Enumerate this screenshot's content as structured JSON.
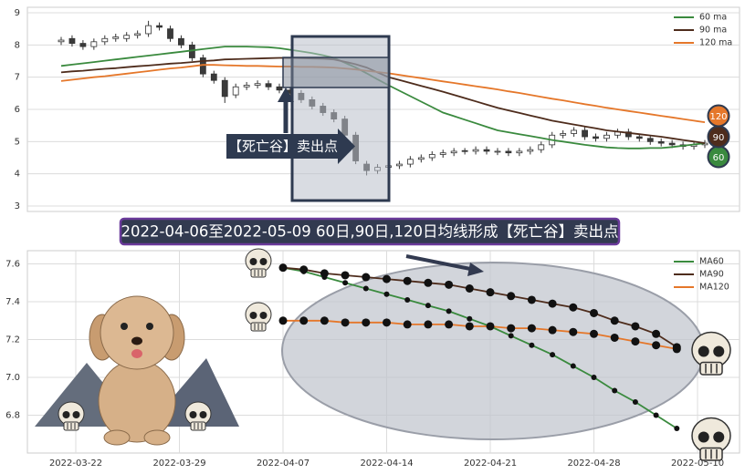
{
  "chart_data": [
    {
      "type": "candlestick",
      "annotation": "【死亡谷】卖出点",
      "open": [
        8.1,
        8.2,
        8.05,
        7.95,
        8.1,
        8.2,
        8.2,
        8.3,
        8.35,
        8.6,
        8.5,
        8.2,
        8.0,
        7.6,
        7.1,
        6.9,
        6.45,
        6.7,
        6.75,
        6.8,
        6.7,
        6.6,
        6.5,
        6.3,
        6.1,
        5.9,
        5.7,
        5.2,
        4.3,
        4.1,
        4.2,
        4.25,
        4.3,
        4.45,
        4.5,
        4.6,
        4.65,
        4.72,
        4.7,
        4.75,
        4.68,
        4.7,
        4.65,
        4.7,
        4.75,
        4.9,
        5.2,
        5.25,
        5.35,
        5.15,
        5.1,
        5.2,
        5.3,
        5.15,
        5.1,
        5.0,
        4.95,
        4.9,
        4.85,
        4.9
      ],
      "high": [
        8.25,
        8.3,
        8.15,
        8.2,
        8.3,
        8.35,
        8.4,
        8.45,
        8.75,
        8.7,
        8.6,
        8.3,
        8.1,
        7.7,
        7.2,
        7.0,
        6.8,
        6.85,
        6.9,
        6.9,
        6.8,
        6.7,
        6.6,
        6.4,
        6.2,
        6.0,
        5.8,
        5.3,
        4.4,
        4.3,
        4.35,
        4.4,
        4.55,
        4.6,
        4.7,
        4.75,
        4.8,
        4.8,
        4.85,
        4.85,
        4.8,
        4.8,
        4.8,
        4.85,
        5.0,
        5.3,
        5.35,
        5.45,
        5.45,
        5.25,
        5.3,
        5.4,
        5.4,
        5.25,
        5.2,
        5.1,
        5.05,
        5.0,
        5.0,
        5.05
      ],
      "low": [
        8.0,
        7.95,
        7.85,
        7.85,
        8.0,
        8.1,
        8.1,
        8.2,
        8.25,
        8.45,
        8.1,
        7.9,
        7.5,
        7.0,
        6.8,
        6.2,
        6.35,
        6.6,
        6.65,
        6.6,
        6.5,
        6.4,
        6.2,
        6.0,
        5.8,
        5.6,
        5.1,
        4.3,
        3.95,
        4.0,
        4.1,
        4.15,
        4.2,
        4.35,
        4.4,
        4.5,
        4.55,
        4.6,
        4.6,
        4.6,
        4.58,
        4.55,
        4.55,
        4.6,
        4.65,
        4.8,
        5.1,
        5.15,
        5.05,
        5.0,
        5.0,
        5.1,
        5.05,
        5.0,
        4.9,
        4.85,
        4.8,
        4.75,
        4.75,
        4.8
      ],
      "close": [
        8.15,
        8.05,
        7.95,
        8.1,
        8.2,
        8.25,
        8.3,
        8.35,
        8.6,
        8.55,
        8.2,
        8.0,
        7.6,
        7.1,
        6.9,
        6.4,
        6.7,
        6.75,
        6.8,
        6.7,
        6.6,
        6.5,
        6.3,
        6.1,
        5.9,
        5.7,
        5.2,
        4.4,
        4.1,
        4.2,
        4.25,
        4.3,
        4.45,
        4.5,
        4.6,
        4.65,
        4.7,
        4.7,
        4.75,
        4.7,
        4.7,
        4.65,
        4.7,
        4.75,
        4.9,
        5.2,
        5.25,
        5.35,
        5.15,
        5.1,
        5.2,
        5.3,
        5.15,
        5.1,
        5.0,
        4.95,
        4.9,
        4.85,
        4.9,
        4.95
      ],
      "up_color": "#ffffff",
      "down_color": "#3a3a3a",
      "series": [
        {
          "name": "60 ma",
          "color": "#3a8a3e",
          "badge": 60,
          "values": [
            7.35,
            7.39,
            7.43,
            7.47,
            7.51,
            7.55,
            7.59,
            7.63,
            7.67,
            7.71,
            7.75,
            7.79,
            7.83,
            7.87,
            7.91,
            7.95,
            7.95,
            7.95,
            7.94,
            7.93,
            7.9,
            7.85,
            7.8,
            7.75,
            7.68,
            7.6,
            7.45,
            7.3,
            7.12,
            6.93,
            6.75,
            6.58,
            6.41,
            6.24,
            6.07,
            5.9,
            5.79,
            5.68,
            5.57,
            5.46,
            5.35,
            5.29,
            5.23,
            5.17,
            5.11,
            5.05,
            5.0,
            4.95,
            4.9,
            4.86,
            4.82,
            4.8,
            4.79,
            4.79,
            4.8,
            4.8,
            4.83,
            4.87,
            4.91,
            4.95
          ]
        },
        {
          "name": "90 ma",
          "color": "#4e2c1c",
          "badge": 90,
          "values": [
            7.15,
            7.18,
            7.2,
            7.23,
            7.26,
            7.28,
            7.31,
            7.34,
            7.36,
            7.39,
            7.42,
            7.44,
            7.47,
            7.5,
            7.52,
            7.55,
            7.56,
            7.57,
            7.58,
            7.59,
            7.6,
            7.6,
            7.59,
            7.58,
            7.57,
            7.55,
            7.48,
            7.4,
            7.3,
            7.15,
            7.0,
            6.91,
            6.82,
            6.73,
            6.64,
            6.55,
            6.45,
            6.35,
            6.25,
            6.15,
            6.05,
            5.97,
            5.89,
            5.81,
            5.73,
            5.65,
            5.59,
            5.53,
            5.47,
            5.41,
            5.35,
            5.31,
            5.27,
            5.23,
            5.19,
            5.15,
            5.1,
            5.05,
            5.0,
            4.95
          ]
        },
        {
          "name": "120 ma",
          "color": "#e5772a",
          "badge": 120,
          "values": [
            6.88,
            6.92,
            6.96,
            7.0,
            7.03,
            7.07,
            7.11,
            7.15,
            7.19,
            7.23,
            7.27,
            7.3,
            7.34,
            7.38,
            7.38,
            7.37,
            7.36,
            7.35,
            7.35,
            7.34,
            7.33,
            7.33,
            7.32,
            7.32,
            7.31,
            7.3,
            7.27,
            7.24,
            7.2,
            7.16,
            7.12,
            7.07,
            7.02,
            6.97,
            6.92,
            6.87,
            6.82,
            6.77,
            6.72,
            6.67,
            6.62,
            6.56,
            6.51,
            6.45,
            6.39,
            6.33,
            6.28,
            6.22,
            6.16,
            6.11,
            6.05,
            6.0,
            5.95,
            5.9,
            5.85,
            5.8,
            5.75,
            5.7,
            5.65,
            5.6
          ]
        }
      ],
      "ylim": [
        2.83,
        9.17
      ],
      "yticks": [
        3,
        4,
        5,
        6,
        7,
        8,
        9
      ],
      "grid": true,
      "legend": "upper right"
    },
    {
      "type": "line",
      "title": "2022-04-06至2022-05-09 60日,90日,120日均线形成【死亡谷】卖出点",
      "categories": [
        null,
        null,
        "2022-03-22",
        null,
        null,
        null,
        null,
        "2022-03-29",
        null,
        null,
        null,
        null,
        "2022-04-07",
        null,
        null,
        null,
        null,
        "2022-04-14",
        null,
        null,
        null,
        null,
        "2022-04-21",
        null,
        null,
        null,
        null,
        "2022-04-28",
        null,
        null,
        null,
        null,
        "2022-05-10",
        null
      ],
      "series": [
        {
          "name": "MA60",
          "color": "#3a8a3e",
          "values": [
            null,
            null,
            null,
            null,
            null,
            null,
            null,
            null,
            null,
            null,
            null,
            null,
            7.58,
            7.56,
            7.53,
            7.5,
            7.47,
            7.44,
            7.41,
            7.38,
            7.35,
            7.31,
            7.27,
            7.22,
            7.17,
            7.12,
            7.06,
            7.0,
            6.93,
            6.87,
            6.8,
            6.73,
            null,
            null
          ]
        },
        {
          "name": "MA90",
          "color": "#4e2c1c",
          "values": [
            null,
            null,
            null,
            null,
            null,
            null,
            null,
            null,
            null,
            null,
            null,
            null,
            7.58,
            7.57,
            7.55,
            7.54,
            7.53,
            7.52,
            7.51,
            7.5,
            7.49,
            7.47,
            7.45,
            7.43,
            7.41,
            7.39,
            7.37,
            7.34,
            7.3,
            7.27,
            7.23,
            7.16,
            null,
            null
          ]
        },
        {
          "name": "MA120",
          "color": "#e5772a",
          "values": [
            null,
            null,
            null,
            null,
            null,
            null,
            null,
            null,
            null,
            null,
            null,
            null,
            7.3,
            7.3,
            7.3,
            7.29,
            7.29,
            7.29,
            7.28,
            7.28,
            7.28,
            7.27,
            7.27,
            7.26,
            7.26,
            7.25,
            7.24,
            7.23,
            7.21,
            7.19,
            7.17,
            7.15,
            null,
            null
          ]
        }
      ],
      "ylim": [
        6.6,
        7.67
      ],
      "yticks": [
        6.8,
        {
          "value": 7,
          "label": "7.0"
        },
        7.2,
        7.4,
        7.6
      ],
      "grid": true,
      "legend": "upper right"
    }
  ]
}
